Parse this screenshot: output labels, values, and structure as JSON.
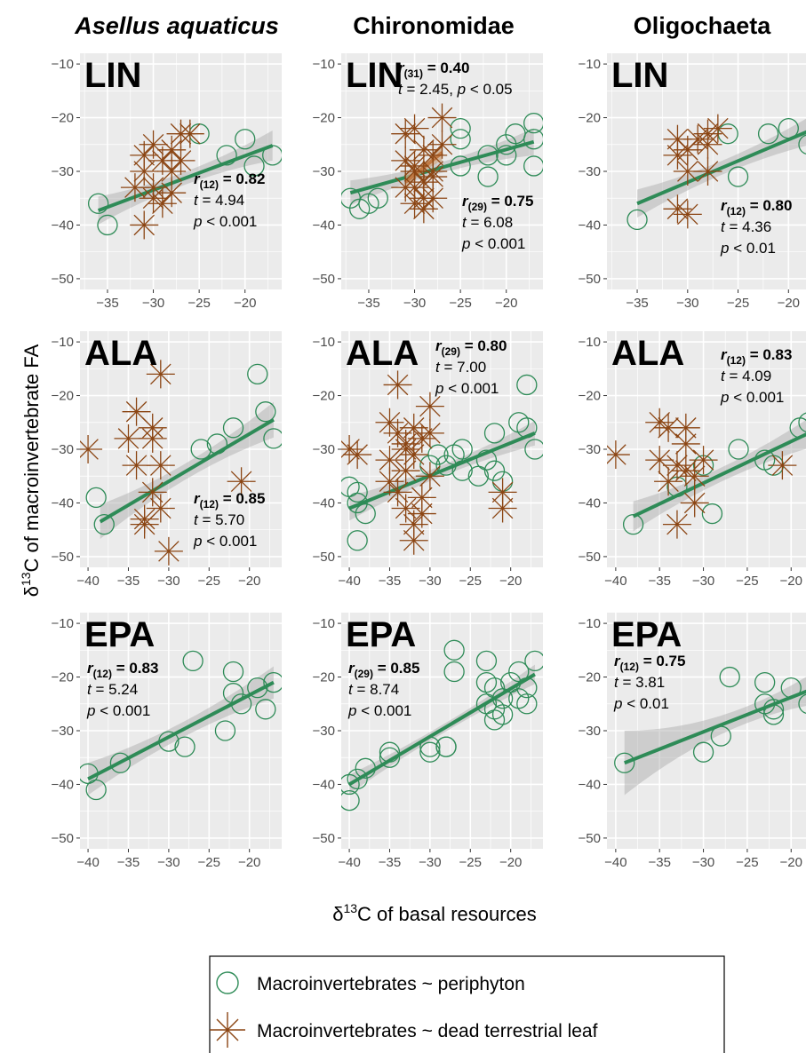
{
  "figure": {
    "xlabel_main": "δ",
    "xlabel_sup": "13",
    "xlabel_rest": "C of basal resources",
    "ylabel_main": "δ",
    "ylabel_sup": "13",
    "ylabel_rest": "C of macroinvertebrate FA",
    "col_titles": [
      "Asellus aquaticus",
      "Chironomidae",
      "Oligochaeta"
    ],
    "legend": {
      "items": [
        {
          "label": "Macroinvertebrates ~ periphyton",
          "marker": "circle",
          "color": "#2e8b57"
        },
        {
          "label": "Macroinvertebrates ~ dead terrestrial leaf",
          "marker": "asterisk",
          "color": "#8b4513"
        }
      ]
    }
  },
  "chart_data": [
    {
      "type": "scatter",
      "row": 0,
      "col": 0,
      "label": "LIN",
      "xlim": [
        -38,
        -16
      ],
      "xticks": [
        -35,
        -30,
        -25,
        -20
      ],
      "ylim": [
        -52,
        -8
      ],
      "yticks": [
        -10,
        -20,
        -30,
        -40,
        -50
      ],
      "stats": [
        {
          "r": "r",
          "df": "(12)",
          "rv": "= 0.82",
          "t": "t = 4.94",
          "p_rest": " < 0.001"
        }
      ],
      "series": [
        {
          "name": "Macroinvertebrates ~ periphyton",
          "marker": "circle",
          "x": [
            -36,
            -35,
            -25,
            -22,
            -20,
            -19,
            -17
          ],
          "y": [
            -36,
            -40,
            -23,
            -27,
            -24,
            -29,
            -27
          ]
        },
        {
          "name": "Macroinvertebrates ~ dead terrestrial leaf",
          "marker": "asterisk",
          "x": [
            -31,
            -31,
            -30,
            -30,
            -29,
            -28,
            -28,
            -27,
            -27,
            -26,
            -31,
            -29,
            -28,
            -32,
            -30
          ],
          "y": [
            -27,
            -30,
            -25,
            -33,
            -28,
            -30,
            -26,
            -23,
            -28,
            -23,
            -40,
            -36,
            -34,
            -33,
            -35
          ]
        }
      ],
      "fits": [
        {
          "series": "periphyton",
          "x": [
            -36,
            -17
          ],
          "y": [
            -37.3,
            -25.2
          ],
          "band": [
            2.6,
            1.2,
            2.8
          ]
        }
      ]
    },
    {
      "type": "scatter",
      "row": 0,
      "col": 1,
      "label": "LIN",
      "xlim": [
        -38,
        -16
      ],
      "xticks": [
        -35,
        -30,
        -25,
        -20
      ],
      "ylim": [
        -52,
        -8
      ],
      "yticks": [
        -10,
        -20,
        -30,
        -40,
        -50
      ],
      "stats": [
        {
          "r": "r",
          "df": "(31)",
          "rv": "= 0.40",
          "t": "t = 2.45,",
          "p_rest": " < 0.05"
        },
        {
          "r": "r",
          "df": "(29)",
          "rv": "= 0.75",
          "t": "t = 6.08",
          "p_rest": " < 0.001"
        }
      ],
      "series": [
        {
          "name": "Macroinvertebrates ~ periphyton",
          "marker": "circle",
          "x": [
            -37,
            -36,
            -35,
            -34,
            -25,
            -25,
            -25,
            -22,
            -22,
            -20,
            -20,
            -19,
            -17,
            -17,
            -17
          ],
          "y": [
            -35,
            -37,
            -36,
            -35,
            -22,
            -24,
            -29,
            -31,
            -27,
            -25,
            -27,
            -23,
            -21,
            -24,
            -29
          ]
        },
        {
          "name": "Macroinvertebrates ~ dead terrestrial leaf",
          "marker": "asterisk",
          "x": [
            -31,
            -30,
            -30,
            -29,
            -29,
            -28,
            -28,
            -27,
            -27,
            -31,
            -30,
            -29,
            -28,
            -31,
            -30,
            -29,
            -30,
            -28
          ],
          "y": [
            -28,
            -30,
            -33,
            -32,
            -35,
            -31,
            -27,
            -25,
            -20,
            -23,
            -36,
            -37,
            -30,
            -33,
            -22,
            -26,
            -29,
            -35
          ]
        }
      ],
      "fits": [
        {
          "series": "periphyton",
          "x": [
            -37,
            -17
          ],
          "y": [
            -34,
            -24.5
          ],
          "band": [
            2.3,
            1.0,
            2.5
          ]
        },
        {
          "series": "dead terrestrial leaf",
          "x": [
            -31,
            -27
          ],
          "y": [
            -32,
            -26.5
          ],
          "band": [
            1.6,
            0.8,
            1.6
          ]
        }
      ]
    },
    {
      "type": "scatter",
      "row": 0,
      "col": 2,
      "label": "LIN",
      "xlim": [
        -38,
        -18
      ],
      "xticks": [
        -35,
        -30,
        -25,
        -20
      ],
      "ylim": [
        -52,
        -8
      ],
      "yticks": [
        -10,
        -20,
        -30,
        -40,
        -50
      ],
      "stats": [
        {
          "r": "r",
          "df": "(12)",
          "rv": "= 0.80",
          "t": "t = 4.36",
          "p_rest": " < 0.01"
        }
      ],
      "series": [
        {
          "name": "Macroinvertebrates ~ periphyton",
          "marker": "circle",
          "x": [
            -35,
            -26,
            -25,
            -22,
            -20,
            -18
          ],
          "y": [
            -39,
            -23,
            -31,
            -23,
            -22,
            -25
          ]
        },
        {
          "name": "Macroinvertebrates ~ dead terrestrial leaf",
          "marker": "asterisk",
          "x": [
            -31,
            -31,
            -30,
            -30,
            -29,
            -28,
            -28,
            -27,
            -28,
            -30,
            -31
          ],
          "y": [
            -24,
            -27,
            -26,
            -30,
            -24,
            -25,
            -23,
            -22,
            -30,
            -38,
            -37
          ]
        }
      ],
      "fits": [
        {
          "series": "periphyton",
          "x": [
            -35,
            -18
          ],
          "y": [
            -36,
            -22.5
          ],
          "band": [
            2.6,
            1.3,
            2.6
          ]
        }
      ]
    },
    {
      "type": "scatter",
      "row": 1,
      "col": 0,
      "label": "ALA",
      "xlim": [
        -41,
        -16
      ],
      "xticks": [
        -40,
        -35,
        -30,
        -25,
        -20
      ],
      "ylim": [
        -52,
        -8
      ],
      "yticks": [
        -10,
        -20,
        -30,
        -40,
        -50
      ],
      "stats": [
        {
          "r": "r",
          "df": "(12)",
          "rv": "= 0.85",
          "t": "t = 5.70",
          "p_rest": " < 0.001"
        }
      ],
      "series": [
        {
          "name": "Macroinvertebrates ~ periphyton",
          "marker": "circle",
          "x": [
            -39,
            -38,
            -26,
            -24,
            -22,
            -19,
            -18,
            -17
          ],
          "y": [
            -39,
            -44,
            -30,
            -29,
            -26,
            -16,
            -23,
            -28
          ]
        },
        {
          "name": "Macroinvertebrates ~ dead terrestrial leaf",
          "marker": "asterisk",
          "x": [
            -40,
            -34,
            -35,
            -34,
            -32,
            -31,
            -32,
            -31,
            -33,
            -32,
            -31,
            -33,
            -30,
            -21
          ],
          "y": [
            -30,
            -23,
            -28,
            -33,
            -26,
            -16,
            -28,
            -33,
            -43,
            -38,
            -41,
            -44,
            -49,
            -36
          ]
        }
      ],
      "fits": [
        {
          "series": "periphyton",
          "x": [
            -38.5,
            -17
          ],
          "y": [
            -43.5,
            -24.5
          ],
          "band": [
            3.2,
            1.5,
            3.3
          ]
        }
      ]
    },
    {
      "type": "scatter",
      "row": 1,
      "col": 1,
      "label": "ALA",
      "xlim": [
        -41,
        -16
      ],
      "xticks": [
        -40,
        -35,
        -30,
        -25,
        -20
      ],
      "ylim": [
        -52,
        -8
      ],
      "yticks": [
        -10,
        -20,
        -30,
        -40,
        -50
      ],
      "stats": [
        {
          "r": "r",
          "df": "(29)",
          "rv": "= 0.80",
          "t": "t = 7.00",
          "p_rest": " < 0.001"
        }
      ],
      "series": [
        {
          "name": "Macroinvertebrates ~ periphyton",
          "marker": "circle",
          "x": [
            -40,
            -39,
            -39,
            -38,
            -39,
            -30,
            -29,
            -28,
            -27,
            -26,
            -26,
            -24,
            -23,
            -22,
            -22,
            -21,
            -19,
            -18,
            -18,
            -17
          ],
          "y": [
            -37,
            -40,
            -47,
            -42,
            -38,
            -33,
            -31,
            -33,
            -31,
            -30,
            -34,
            -35,
            -32,
            -34,
            -27,
            -36,
            -25,
            -18,
            -26,
            -30
          ]
        },
        {
          "name": "Macroinvertebrates ~ dead terrestrial leaf",
          "marker": "asterisk",
          "x": [
            -40,
            -39,
            -35,
            -35,
            -34,
            -34,
            -33,
            -33,
            -32,
            -32,
            -31,
            -31,
            -30,
            -30,
            -32,
            -31,
            -33,
            -35,
            -34,
            -33,
            -32,
            -21,
            -21,
            -30
          ],
          "y": [
            -30,
            -31,
            -25,
            -32,
            -18,
            -27,
            -30,
            -34,
            -26,
            -31,
            -28,
            -39,
            -22,
            -35,
            -47,
            -42,
            -41,
            -36,
            -38,
            -29,
            -44,
            -38,
            -41,
            -27
          ]
        }
      ],
      "fits": [
        {
          "series": "periphyton",
          "x": [
            -40,
            -17
          ],
          "y": [
            -41,
            -27
          ],
          "band": [
            2.3,
            1.0,
            2.3
          ]
        }
      ]
    },
    {
      "type": "scatter",
      "row": 1,
      "col": 2,
      "label": "ALA",
      "xlim": [
        -41,
        -18
      ],
      "xticks": [
        -40,
        -35,
        -30,
        -25,
        -20
      ],
      "ylim": [
        -52,
        -8
      ],
      "yticks": [
        -10,
        -20,
        -30,
        -40,
        -50
      ],
      "stats": [
        {
          "r": "r",
          "df": "(12)",
          "rv": "= 0.83",
          "t": "t = 4.09",
          "p_rest": " < 0.001"
        }
      ],
      "series": [
        {
          "name": "Macroinvertebrates ~ periphyton",
          "marker": "circle",
          "x": [
            -38,
            -33,
            -30,
            -29,
            -26,
            -23,
            -22,
            -19,
            -18
          ],
          "y": [
            -44,
            -37,
            -33,
            -42,
            -30,
            -32,
            -33,
            -26,
            -25
          ]
        },
        {
          "name": "Macroinvertebrates ~ dead terrestrial leaf",
          "marker": "asterisk",
          "x": [
            -40,
            -35,
            -34,
            -35,
            -34,
            -33,
            -32,
            -32,
            -32,
            -31,
            -30,
            -31,
            -33,
            -21
          ],
          "y": [
            -31,
            -25,
            -26,
            -32,
            -36,
            -33,
            -26,
            -29,
            -34,
            -35,
            -32,
            -40,
            -44,
            -33
          ]
        }
      ],
      "fits": [
        {
          "series": "periphyton",
          "x": [
            -38,
            -18
          ],
          "y": [
            -42.5,
            -27
          ],
          "band": [
            2.8,
            1.3,
            2.8
          ]
        }
      ]
    },
    {
      "type": "scatter",
      "row": 2,
      "col": 0,
      "label": "EPA",
      "xlim": [
        -41,
        -16
      ],
      "xticks": [
        -40,
        -35,
        -30,
        -25,
        -20
      ],
      "ylim": [
        -52,
        -8
      ],
      "yticks": [
        -10,
        -20,
        -30,
        -40,
        -50
      ],
      "stats": [
        {
          "r": "r",
          "df": "(12)",
          "rv": "= 0.83",
          "t": "t = 5.24",
          "p_rest": " < 0.001"
        }
      ],
      "series": [
        {
          "name": "Macroinvertebrates ~ periphyton",
          "marker": "circle",
          "x": [
            -40,
            -39,
            -36,
            -30,
            -28,
            -27,
            -23,
            -22,
            -22,
            -21,
            -19,
            -18,
            -17
          ],
          "y": [
            -38,
            -41,
            -36,
            -32,
            -33,
            -17,
            -30,
            -23,
            -19,
            -25,
            -22,
            -26,
            -21
          ]
        }
      ],
      "fits": [
        {
          "series": "periphyton",
          "x": [
            -40,
            -17
          ],
          "y": [
            -39,
            -21
          ],
          "band": [
            3.0,
            1.4,
            3.0
          ]
        }
      ]
    },
    {
      "type": "scatter",
      "row": 2,
      "col": 1,
      "label": "EPA",
      "xlim": [
        -41,
        -16
      ],
      "xticks": [
        -40,
        -35,
        -30,
        -25,
        -20
      ],
      "ylim": [
        -52,
        -8
      ],
      "yticks": [
        -10,
        -20,
        -30,
        -40,
        -50
      ],
      "stats": [
        {
          "r": "r",
          "df": "(29)",
          "rv": "= 0.85",
          "t": "t = 8.74",
          "p_rest": " < 0.001"
        }
      ],
      "series": [
        {
          "name": "Macroinvertebrates ~ periphyton",
          "marker": "circle",
          "x": [
            -40,
            -40,
            -38,
            -39,
            -35,
            -35,
            -30,
            -30,
            -28,
            -28,
            -27,
            -27,
            -23,
            -23,
            -23,
            -22,
            -22,
            -22,
            -21,
            -21,
            -20,
            -19,
            -19,
            -18,
            -18,
            -17
          ],
          "y": [
            -40,
            -43,
            -37,
            -39,
            -34,
            -35,
            -33,
            -34,
            -33,
            -33,
            -15,
            -19,
            -17,
            -21,
            -25,
            -26,
            -22,
            -28,
            -27,
            -24,
            -21,
            -19,
            -24,
            -22,
            -25,
            -17
          ]
        }
      ],
      "fits": [
        {
          "series": "periphyton",
          "x": [
            -40,
            -17
          ],
          "y": [
            -40,
            -19.5
          ],
          "band": [
            1.8,
            0.8,
            1.8
          ]
        }
      ]
    },
    {
      "type": "scatter",
      "row": 2,
      "col": 2,
      "label": "EPA",
      "xlim": [
        -41,
        -18
      ],
      "xticks": [
        -40,
        -35,
        -30,
        -25,
        -20
      ],
      "ylim": [
        -52,
        -8
      ],
      "yticks": [
        -10,
        -20,
        -30,
        -40,
        -50
      ],
      "stats": [
        {
          "r": "r",
          "df": "(12)",
          "rv": "= 0.75",
          "t": "t = 3.81",
          "p_rest": " < 0.01"
        }
      ],
      "series": [
        {
          "name": "Macroinvertebrates ~ periphyton",
          "marker": "circle",
          "x": [
            -39,
            -30,
            -28,
            -27,
            -23,
            -23,
            -22,
            -22,
            -20,
            -18
          ],
          "y": [
            -36,
            -34,
            -31,
            -20,
            -25,
            -21,
            -27,
            -26,
            -22,
            -25
          ]
        }
      ],
      "fits": [
        {
          "series": "periphyton",
          "x": [
            -39,
            -18
          ],
          "y": [
            -36,
            -22.5
          ],
          "band": [
            6.0,
            1.8,
            2.8
          ]
        }
      ]
    }
  ]
}
